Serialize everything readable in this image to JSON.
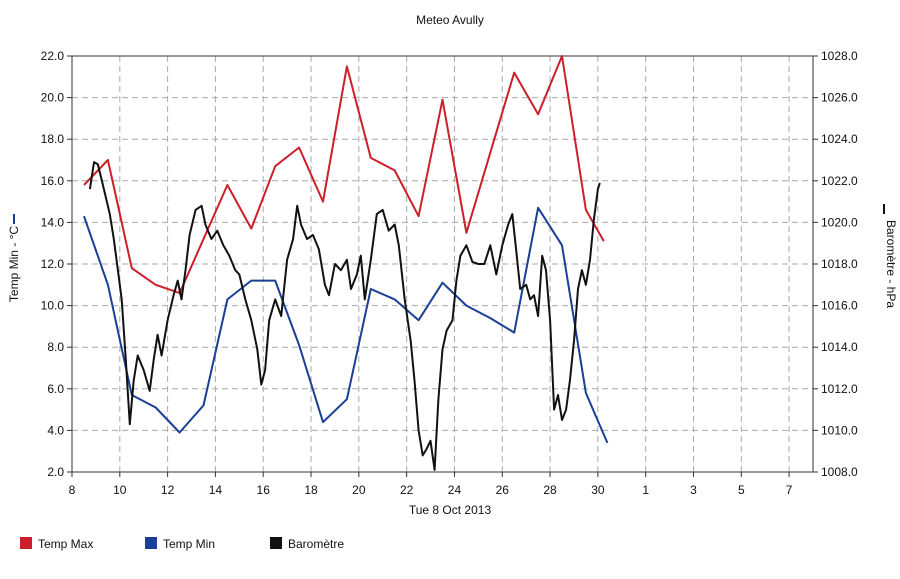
{
  "chart_data": {
    "type": "line",
    "title": "Meteo  Avully",
    "xlabel": "Tue 8 Oct 2013",
    "ylabel": "Temp Min - °C",
    "y2label": "Baromètre - hPa",
    "grid": true,
    "legend": "bottom",
    "xlim": [
      8,
      39
    ],
    "xticks": [
      8,
      10,
      12,
      14,
      16,
      18,
      20,
      22,
      24,
      26,
      28,
      30,
      {
        "value": 32,
        "label": "1"
      },
      {
        "value": 34,
        "label": "3"
      },
      {
        "value": 36,
        "label": "5"
      },
      {
        "value": 38,
        "label": "7"
      }
    ],
    "ylim": [
      2,
      22
    ],
    "yticks": [
      {
        "value": 2,
        "label": "2.0"
      },
      {
        "value": 4,
        "label": "4.0"
      },
      {
        "value": 6,
        "label": "6.0"
      },
      {
        "value": 8,
        "label": "8.0"
      },
      {
        "value": 10,
        "label": "10.0"
      },
      {
        "value": 12,
        "label": "12.0"
      },
      {
        "value": 14,
        "label": "14.0"
      },
      {
        "value": 16,
        "label": "16.0"
      },
      {
        "value": 18,
        "label": "18.0"
      },
      {
        "value": 20,
        "label": "20.0"
      },
      {
        "value": 22,
        "label": "22.0"
      }
    ],
    "y2lim": [
      1008,
      1028
    ],
    "y2ticks": [
      {
        "value": 1008,
        "label": "1008.0"
      },
      {
        "value": 1010,
        "label": "1010.0"
      },
      {
        "value": 1012,
        "label": "1012.0"
      },
      {
        "value": 1014,
        "label": "1014.0"
      },
      {
        "value": 1016,
        "label": "1016.0"
      },
      {
        "value": 1018,
        "label": "1018.0"
      },
      {
        "value": 1020,
        "label": "1020.0"
      },
      {
        "value": 1022,
        "label": "1022.0"
      },
      {
        "value": 1024,
        "label": "1024.0"
      },
      {
        "value": 1026,
        "label": "1026.0"
      },
      {
        "value": 1028,
        "label": "1028.0"
      }
    ],
    "series": [
      {
        "name": "Temp Max",
        "color": "#cc1f2a",
        "axis": "y",
        "x": [
          8.5,
          9.5,
          10.5,
          11.5,
          12.5,
          14.5,
          15.5,
          16.5,
          17.5,
          18.5,
          19.5,
          20.5,
          21.5,
          22.5,
          23.5,
          24.5,
          26.5,
          27.5,
          28.5,
          29.5,
          30.25
        ],
        "values": [
          15.8,
          17.0,
          11.8,
          11.0,
          10.6,
          15.8,
          13.7,
          16.7,
          17.6,
          15.0,
          21.5,
          17.1,
          16.5,
          14.3,
          19.9,
          13.5,
          21.2,
          19.2,
          22.0,
          14.6,
          13.1
        ]
      },
      {
        "name": "Temp Min",
        "color": "#1a3f95",
        "axis": "y",
        "x": [
          8.5,
          9.5,
          10.5,
          11.5,
          12.5,
          13.5,
          14.5,
          15.5,
          16.5,
          17.5,
          18.5,
          19.5,
          20.5,
          21.5,
          22.5,
          23.5,
          24.5,
          25.5,
          26.5,
          27.5,
          28.5,
          29.5,
          30.4
        ],
        "values": [
          14.3,
          11.0,
          5.7,
          5.1,
          3.9,
          5.2,
          10.3,
          11.2,
          11.2,
          8.1,
          4.4,
          5.5,
          10.8,
          10.3,
          9.3,
          11.1,
          10.0,
          9.4,
          8.7,
          14.7,
          12.9,
          5.8,
          3.4
        ]
      },
      {
        "name": "Baromètre",
        "color": "#111111",
        "axis": "y2",
        "x": [
          8.75,
          8.92,
          9.08,
          9.25,
          9.58,
          9.75,
          9.92,
          10.08,
          10.25,
          10.42,
          10.58,
          10.75,
          11,
          11.25,
          11.42,
          11.58,
          11.75,
          12,
          12.25,
          12.42,
          12.58,
          12.75,
          12.92,
          13.17,
          13.42,
          13.58,
          13.83,
          14.08,
          14.33,
          14.58,
          14.83,
          15,
          15.25,
          15.5,
          15.75,
          15.92,
          16.08,
          16.25,
          16.5,
          16.75,
          17,
          17.25,
          17.42,
          17.58,
          17.83,
          18.08,
          18.33,
          18.58,
          18.75,
          19,
          19.25,
          19.5,
          19.67,
          19.92,
          20.08,
          20.25,
          20.5,
          20.75,
          21,
          21.25,
          21.5,
          21.67,
          21.92,
          22.17,
          22.33,
          22.5,
          22.67,
          22.83,
          23,
          23.17,
          23.33,
          23.5,
          23.67,
          23.92,
          24.08,
          24.25,
          24.5,
          24.75,
          25,
          25.25,
          25.5,
          25.75,
          26,
          26.25,
          26.42,
          26.58,
          26.75,
          27,
          27.17,
          27.33,
          27.5,
          27.67,
          27.83,
          28,
          28.17,
          28.33,
          28.5,
          28.67,
          28.83,
          29,
          29.17,
          29.33,
          29.5,
          29.67,
          29.83,
          30,
          30.08
        ],
        "values": [
          1021.6,
          1022.9,
          1022.8,
          1022.0,
          1020.4,
          1019.2,
          1017.7,
          1016.3,
          1013.4,
          1010.3,
          1012.4,
          1013.6,
          1012.9,
          1011.9,
          1013.4,
          1014.6,
          1013.6,
          1015.3,
          1016.5,
          1017.2,
          1016.3,
          1017.7,
          1019.4,
          1020.6,
          1020.8,
          1019.9,
          1019.2,
          1019.6,
          1018.9,
          1018.4,
          1017.7,
          1017.5,
          1016.3,
          1015.3,
          1013.9,
          1012.2,
          1012.9,
          1015.3,
          1016.3,
          1015.5,
          1018.2,
          1019.2,
          1020.8,
          1019.9,
          1019.2,
          1019.4,
          1018.7,
          1017.0,
          1016.5,
          1018.0,
          1017.7,
          1018.2,
          1016.8,
          1017.5,
          1018.4,
          1016.3,
          1018.2,
          1020.4,
          1020.6,
          1019.6,
          1019.9,
          1018.9,
          1016.3,
          1014.3,
          1012.4,
          1010.0,
          1008.8,
          1009.1,
          1009.5,
          1008.1,
          1011.5,
          1013.9,
          1014.8,
          1015.3,
          1017.2,
          1018.4,
          1018.9,
          1018.1,
          1018.0,
          1018.0,
          1018.9,
          1017.5,
          1018.9,
          1019.9,
          1020.4,
          1018.7,
          1016.8,
          1017.0,
          1016.3,
          1016.5,
          1015.5,
          1018.4,
          1017.7,
          1015.3,
          1011.0,
          1011.7,
          1010.5,
          1011.0,
          1012.4,
          1014.3,
          1016.8,
          1017.7,
          1017.0,
          1018.2,
          1020.1,
          1021.6,
          1021.9
        ]
      }
    ]
  }
}
